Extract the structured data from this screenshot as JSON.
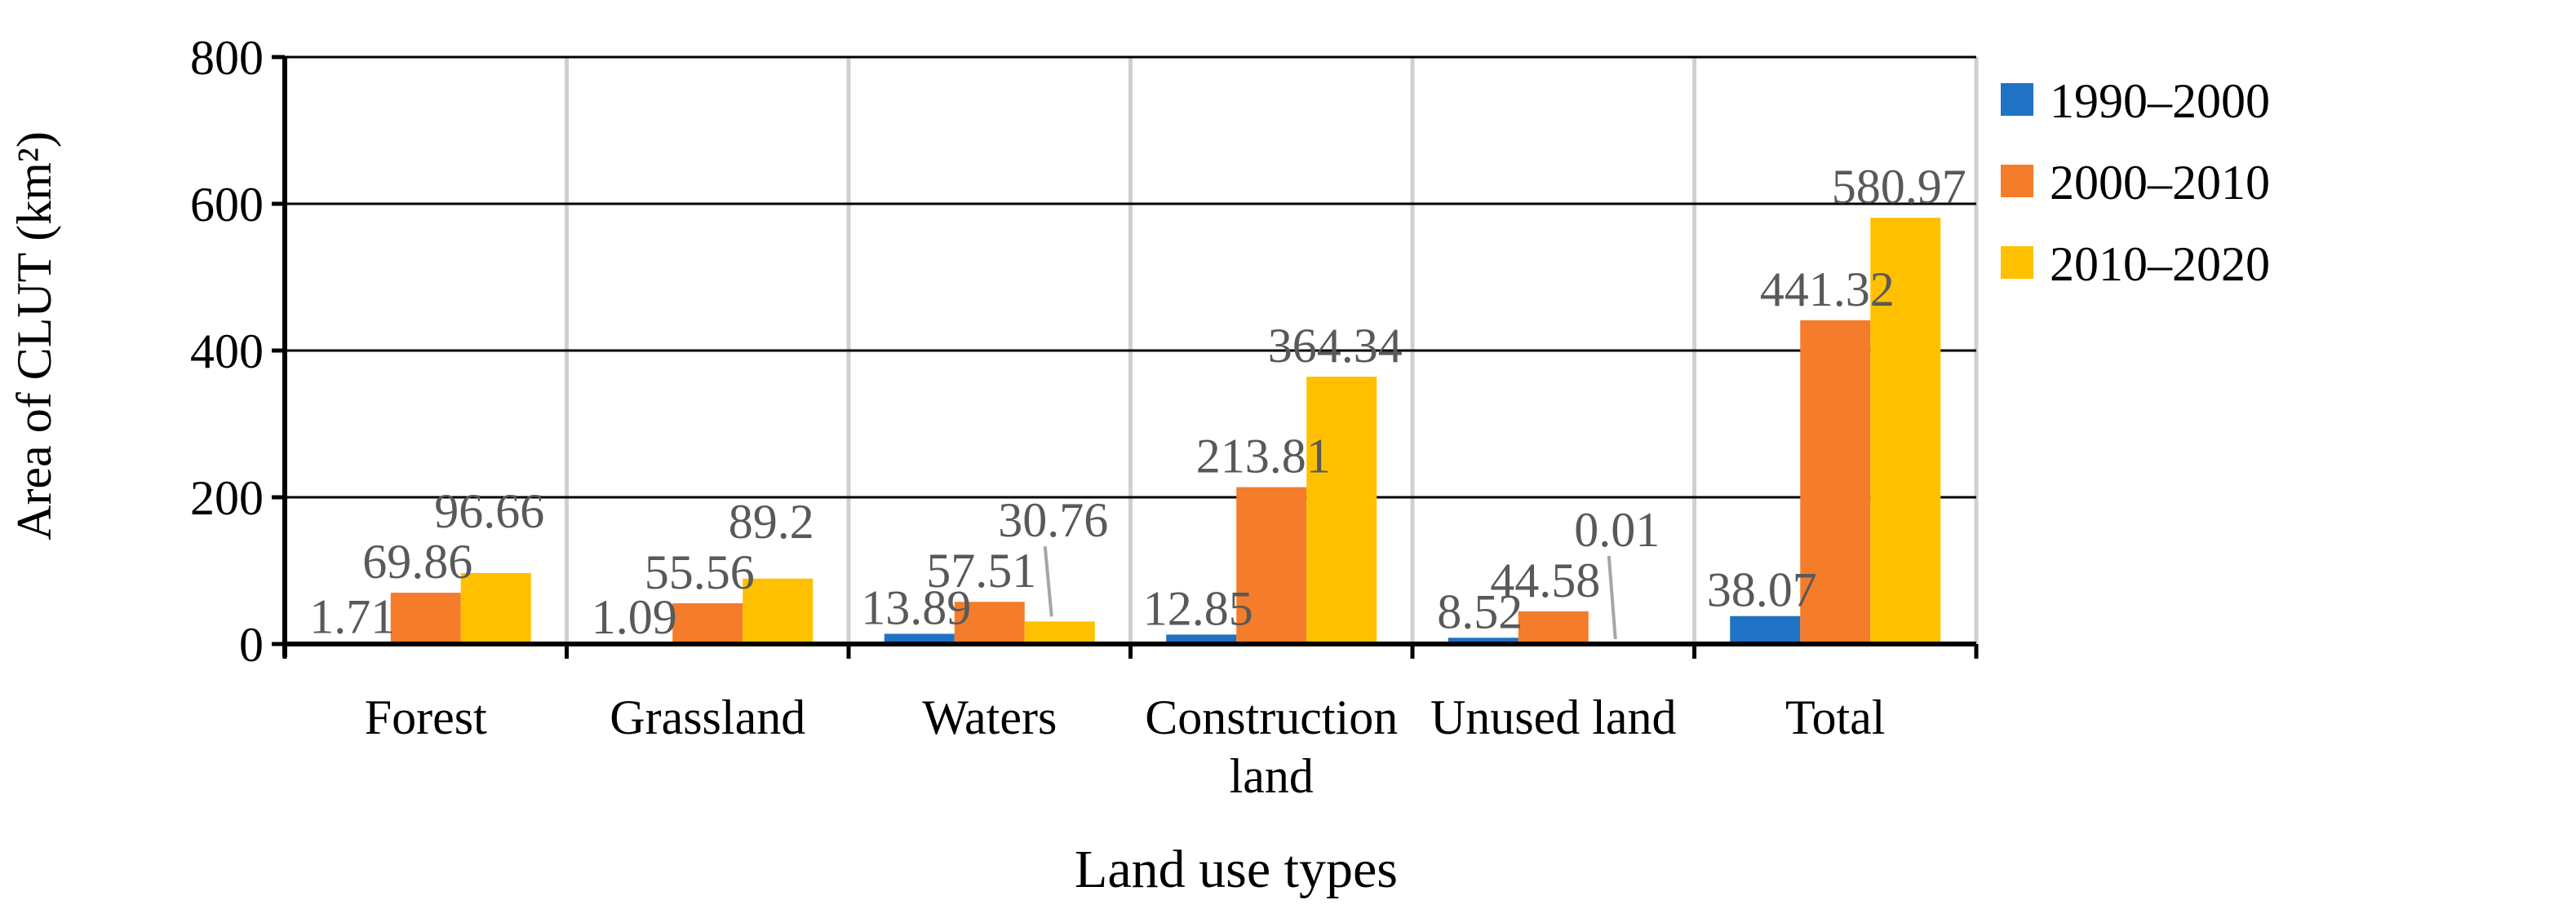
{
  "chart_data": {
    "type": "bar",
    "title": "",
    "xlabel": "Land use types",
    "ylabel": "Area of CLUT (km²)",
    "ylim": [
      0,
      800
    ],
    "yticks": [
      0,
      200,
      400,
      600,
      800
    ],
    "categories": [
      [
        "Forest"
      ],
      [
        "Grassland"
      ],
      [
        "Waters"
      ],
      [
        "Construction",
        "land"
      ],
      [
        "Unused land"
      ],
      [
        "Total"
      ]
    ],
    "series": [
      {
        "name": "1990–2000",
        "color": "#1f72c4",
        "values": [
          1.71,
          1.09,
          13.89,
          12.85,
          8.52,
          38.07
        ],
        "labels": [
          "1.71",
          "1.09",
          "13.89",
          "12.85",
          "8.52",
          "38.07"
        ]
      },
      {
        "name": "2000–2010",
        "color": "#f47c2a",
        "values": [
          69.86,
          55.56,
          57.51,
          213.81,
          44.58,
          441.32
        ],
        "labels": [
          "69.86",
          "55.56",
          "57.51",
          "213.81",
          "44.58",
          "441.32"
        ]
      },
      {
        "name": "2010–2020",
        "color": "#ffc000",
        "values": [
          96.66,
          89.2,
          30.76,
          364.34,
          0.01,
          580.97
        ],
        "labels": [
          "96.66",
          "89.2",
          "30.76",
          "364.34",
          "0.01",
          "580.97"
        ]
      }
    ],
    "grid": true,
    "legend": "right"
  }
}
